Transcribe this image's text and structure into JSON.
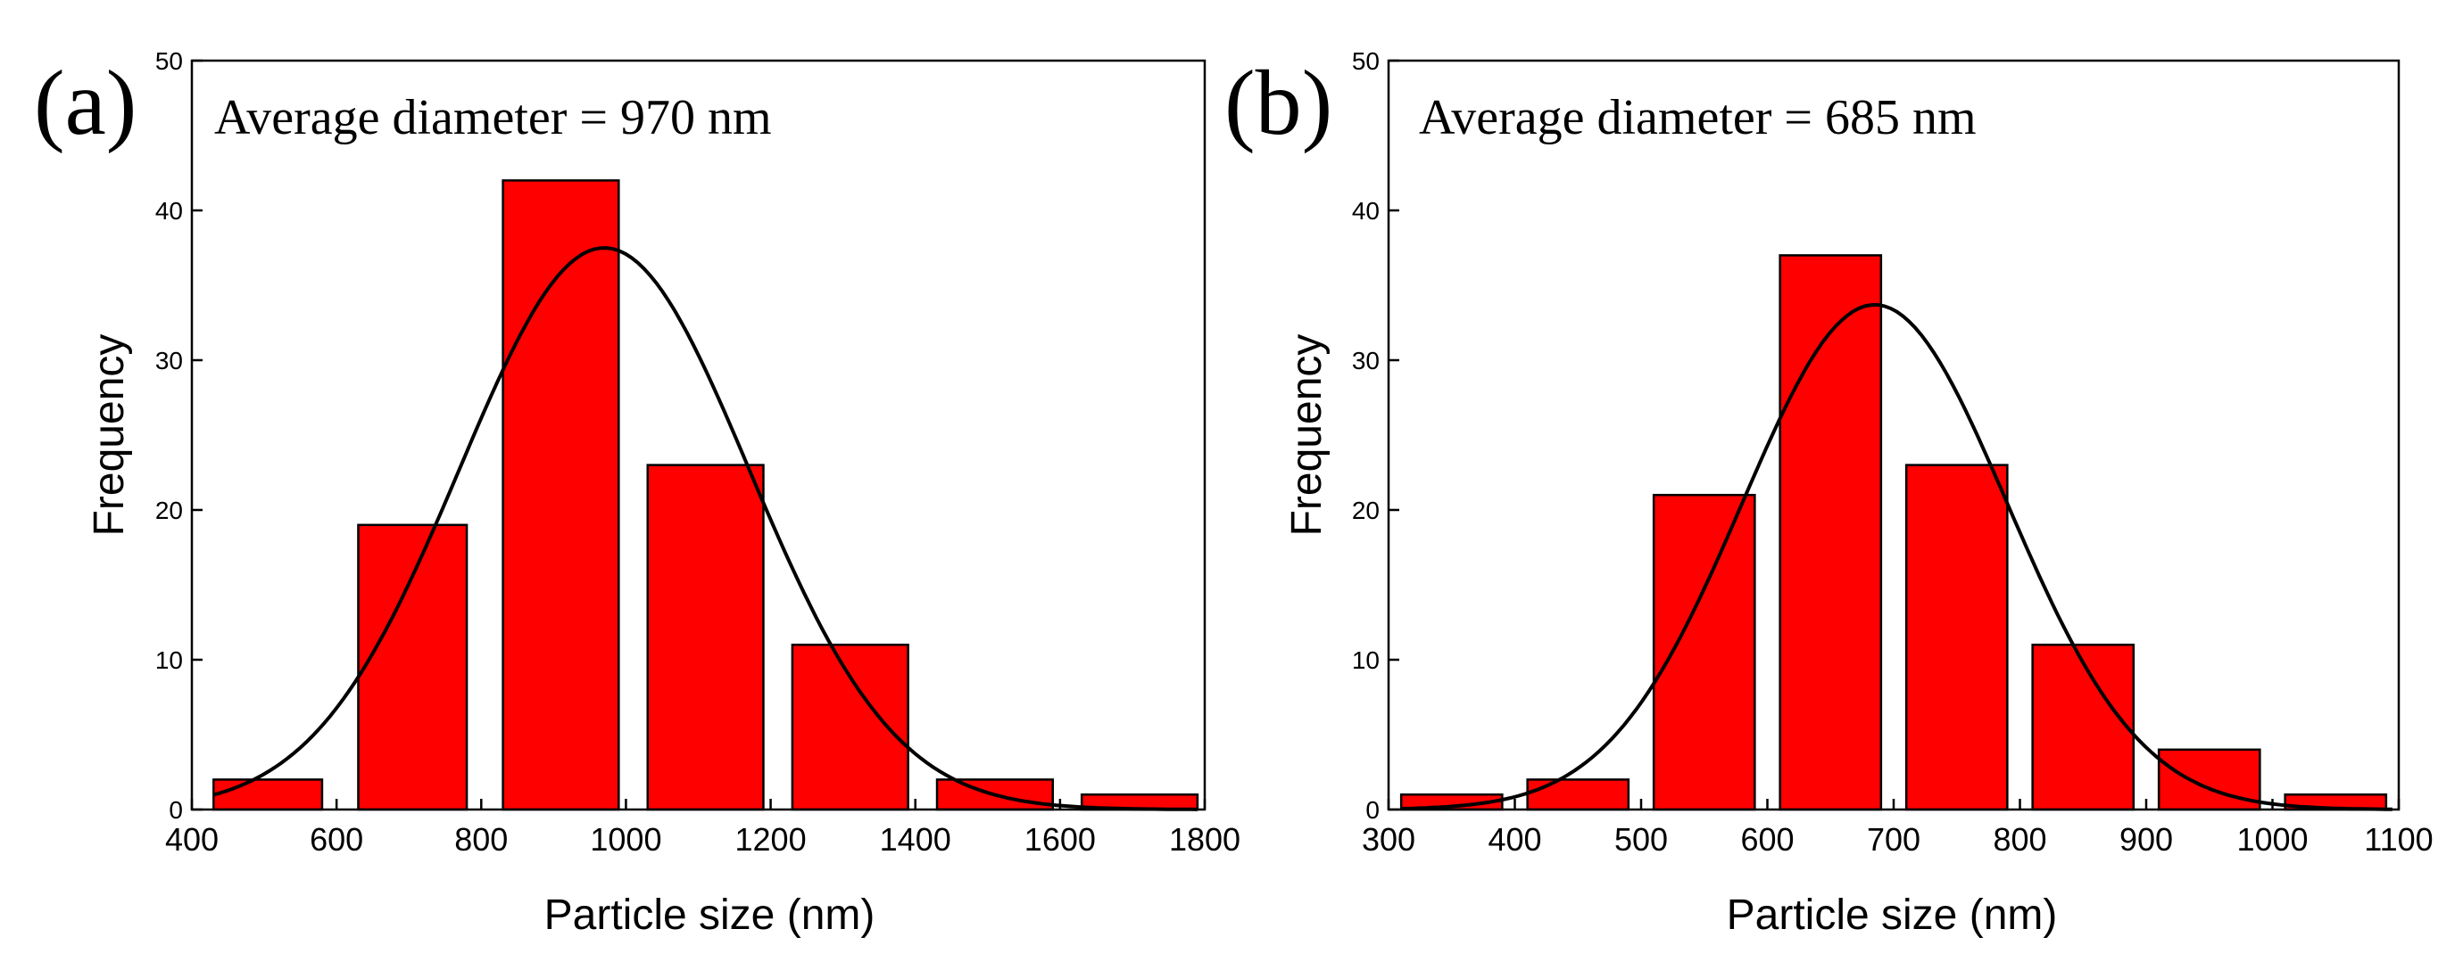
{
  "chart_data": [
    {
      "type": "bar",
      "panel_label": "(a)",
      "annotation": "Average diameter = 970 nm",
      "xlabel": "Particle size (nm)",
      "ylabel": "Frequency",
      "xlim": [
        400,
        1800
      ],
      "ylim": [
        0,
        50
      ],
      "x_ticks": [
        400,
        600,
        800,
        1000,
        1200,
        1400,
        1600,
        1800
      ],
      "y_ticks": [
        0,
        10,
        20,
        30,
        40,
        50
      ],
      "bars": [
        {
          "x0": 430,
          "x1": 580,
          "value": 2
        },
        {
          "x0": 630,
          "x1": 780,
          "value": 19
        },
        {
          "x0": 830,
          "x1": 990,
          "value": 42
        },
        {
          "x0": 1030,
          "x1": 1190,
          "value": 23
        },
        {
          "x0": 1230,
          "x1": 1390,
          "value": 11
        },
        {
          "x0": 1430,
          "x1": 1590,
          "value": 2
        },
        {
          "x0": 1630,
          "x1": 1790,
          "value": 1
        }
      ],
      "fit": {
        "type": "gaussian",
        "mean": 970,
        "sigma": 200,
        "peak": 37.5,
        "x_start": 430,
        "x_end": 1790
      },
      "bar_color": "#ff0000"
    },
    {
      "type": "bar",
      "panel_label": "(b)",
      "annotation": "Average diameter = 685 nm",
      "xlabel": "Particle size (nm)",
      "ylabel": "Frequency",
      "xlim": [
        300,
        1100
      ],
      "ylim": [
        0,
        50
      ],
      "x_ticks": [
        300,
        400,
        500,
        600,
        700,
        800,
        900,
        1000,
        1100
      ],
      "y_ticks": [
        0,
        10,
        20,
        30,
        40,
        50
      ],
      "bars": [
        {
          "x0": 310,
          "x1": 390,
          "value": 1
        },
        {
          "x0": 410,
          "x1": 490,
          "value": 2
        },
        {
          "x0": 510,
          "x1": 590,
          "value": 21
        },
        {
          "x0": 610,
          "x1": 690,
          "value": 37
        },
        {
          "x0": 710,
          "x1": 790,
          "value": 23
        },
        {
          "x0": 810,
          "x1": 890,
          "value": 11
        },
        {
          "x0": 910,
          "x1": 990,
          "value": 4
        },
        {
          "x0": 1010,
          "x1": 1090,
          "value": 1
        }
      ],
      "fit": {
        "type": "gaussian",
        "mean": 685,
        "sigma": 105,
        "peak": 33.7,
        "x_start": 310,
        "x_end": 1095
      },
      "bar_color": "#ff0000"
    }
  ]
}
